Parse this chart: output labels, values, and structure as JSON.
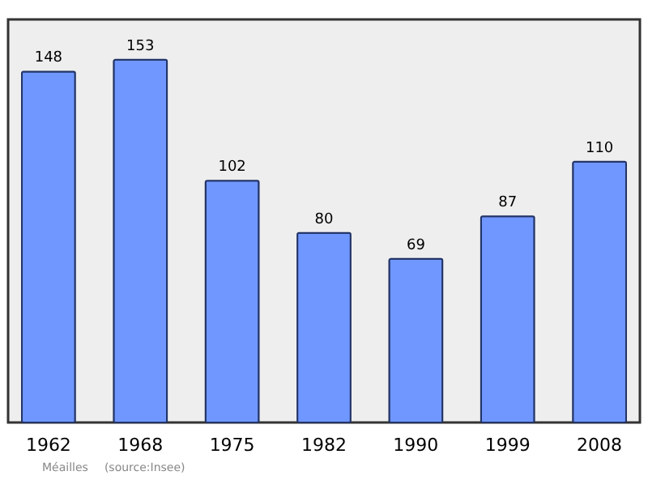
{
  "chart_data": {
    "type": "bar",
    "categories": [
      "1962",
      "1968",
      "1975",
      "1982",
      "1990",
      "1999",
      "2008"
    ],
    "values": [
      148,
      153,
      102,
      80,
      69,
      87,
      110
    ],
    "color": "#7097ff",
    "ylim": [
      0,
      170
    ],
    "data_labels": true,
    "grid": false,
    "annotations": [
      "Méailles",
      "(source:Insee)"
    ]
  }
}
